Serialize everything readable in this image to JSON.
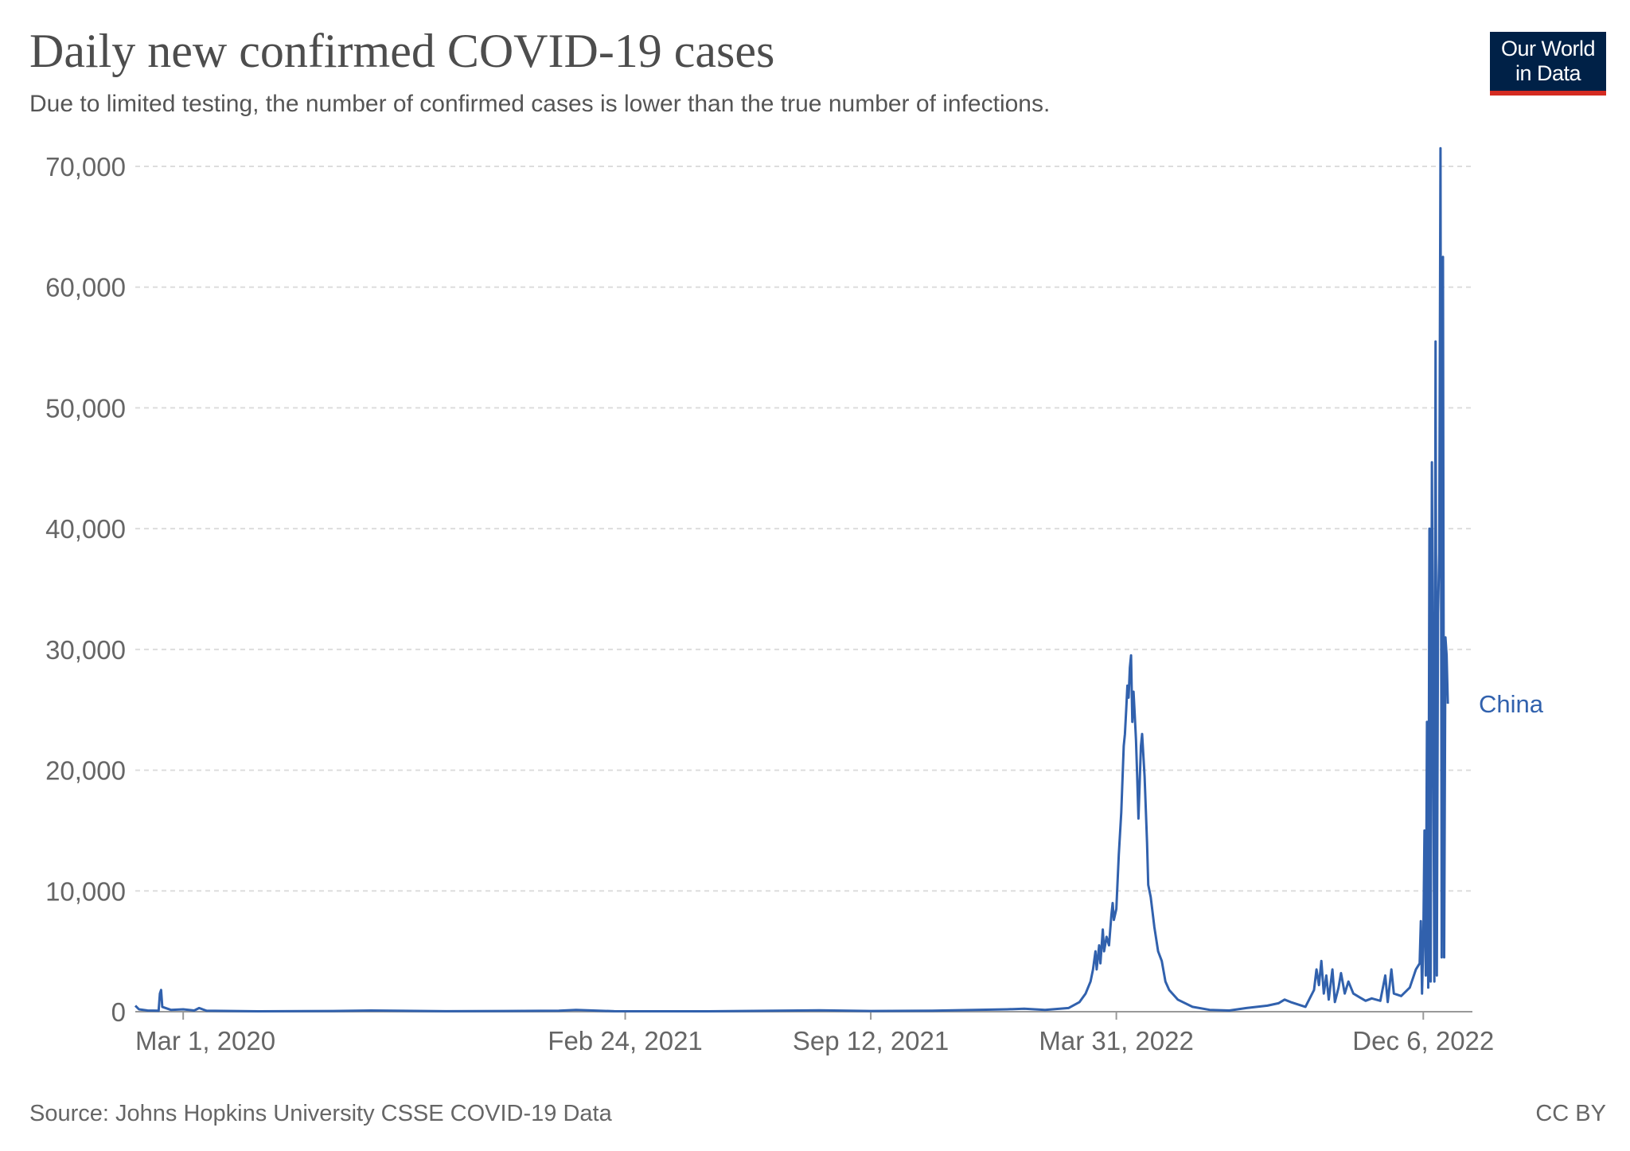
{
  "header": {
    "title": "Daily new confirmed COVID-19 cases",
    "subtitle": "Due to limited testing, the number of confirmed cases is lower than the true number of infections.",
    "logo_line1": "Our World",
    "logo_line2": "in Data"
  },
  "footer": {
    "source": "Source: Johns Hopkins University CSSE COVID-19 Data",
    "license": "CC BY"
  },
  "colors": {
    "series": "#3161ad",
    "text": "#4d4d4d",
    "grid": "#dddddd",
    "logo_bg": "#002147",
    "logo_accent": "#d42b21"
  },
  "chart_data": {
    "type": "line",
    "title": "Daily new confirmed COVID-19 cases",
    "subtitle": "Due to limited testing, the number of confirmed cases is lower than the true number of infections.",
    "xlabel": "",
    "ylabel": "",
    "ylim": [
      0,
      70000
    ],
    "yticks": [
      0,
      10000,
      20000,
      30000,
      40000,
      50000,
      60000,
      70000
    ],
    "ytick_labels": [
      "0",
      "10,000",
      "20,000",
      "30,000",
      "40,000",
      "50,000",
      "60,000",
      "70,000"
    ],
    "xlim": [
      "2020-01-22",
      "2023-01-15"
    ],
    "xticks": [
      "2020-03-01",
      "2021-02-24",
      "2021-09-12",
      "2022-03-31",
      "2022-12-06"
    ],
    "xtick_labels": [
      "Mar 1, 2020",
      "Feb 24, 2021",
      "Sep 12, 2021",
      "Mar 31, 2022",
      "Dec 6, 2022"
    ],
    "grid": true,
    "legend": "end-of-line label",
    "series": [
      {
        "name": "China",
        "points": [
          [
            "2020-01-22",
            500
          ],
          [
            "2020-01-25",
            200
          ],
          [
            "2020-02-01",
            100
          ],
          [
            "2020-02-10",
            80
          ],
          [
            "2020-02-11",
            1500
          ],
          [
            "2020-02-12",
            1800
          ],
          [
            "2020-02-13",
            400
          ],
          [
            "2020-02-20",
            150
          ],
          [
            "2020-03-01",
            200
          ],
          [
            "2020-03-10",
            100
          ],
          [
            "2020-03-14",
            300
          ],
          [
            "2020-03-20",
            80
          ],
          [
            "2020-05-01",
            30
          ],
          [
            "2020-07-01",
            60
          ],
          [
            "2020-08-01",
            100
          ],
          [
            "2020-10-01",
            40
          ],
          [
            "2021-01-01",
            80
          ],
          [
            "2021-01-15",
            150
          ],
          [
            "2021-02-15",
            40
          ],
          [
            "2021-05-01",
            30
          ],
          [
            "2021-08-01",
            120
          ],
          [
            "2021-09-12",
            60
          ],
          [
            "2021-11-01",
            80
          ],
          [
            "2022-01-01",
            200
          ],
          [
            "2022-01-15",
            250
          ],
          [
            "2022-02-01",
            150
          ],
          [
            "2022-02-20",
            300
          ],
          [
            "2022-03-01",
            800
          ],
          [
            "2022-03-06",
            1500
          ],
          [
            "2022-03-10",
            2500
          ],
          [
            "2022-03-12",
            3500
          ],
          [
            "2022-03-14",
            5000
          ],
          [
            "2022-03-15",
            3500
          ],
          [
            "2022-03-17",
            5500
          ],
          [
            "2022-03-18",
            4000
          ],
          [
            "2022-03-20",
            6800
          ],
          [
            "2022-03-21",
            5000
          ],
          [
            "2022-03-23",
            6200
          ],
          [
            "2022-03-25",
            5500
          ],
          [
            "2022-03-27",
            8000
          ],
          [
            "2022-03-28",
            9000
          ],
          [
            "2022-03-29",
            7600
          ],
          [
            "2022-03-31",
            8500
          ],
          [
            "2022-04-02",
            13000
          ],
          [
            "2022-04-04",
            16500
          ],
          [
            "2022-04-06",
            22000
          ],
          [
            "2022-04-07",
            23000
          ],
          [
            "2022-04-08",
            25000
          ],
          [
            "2022-04-09",
            27000
          ],
          [
            "2022-04-10",
            26000
          ],
          [
            "2022-04-11",
            28500
          ],
          [
            "2022-04-12",
            29500
          ],
          [
            "2022-04-13",
            24000
          ],
          [
            "2022-04-14",
            26500
          ],
          [
            "2022-04-15",
            24500
          ],
          [
            "2022-04-16",
            22500
          ],
          [
            "2022-04-17",
            19500
          ],
          [
            "2022-04-18",
            16000
          ],
          [
            "2022-04-20",
            22000
          ],
          [
            "2022-04-21",
            23000
          ],
          [
            "2022-04-23",
            19500
          ],
          [
            "2022-04-25",
            14000
          ],
          [
            "2022-04-26",
            10500
          ],
          [
            "2022-04-28",
            9500
          ],
          [
            "2022-05-01",
            7000
          ],
          [
            "2022-05-04",
            5000
          ],
          [
            "2022-05-07",
            4200
          ],
          [
            "2022-05-10",
            2500
          ],
          [
            "2022-05-13",
            1800
          ],
          [
            "2022-05-20",
            1000
          ],
          [
            "2022-06-01",
            400
          ],
          [
            "2022-06-15",
            150
          ],
          [
            "2022-07-01",
            100
          ],
          [
            "2022-07-15",
            300
          ],
          [
            "2022-08-01",
            500
          ],
          [
            "2022-08-10",
            700
          ],
          [
            "2022-08-15",
            1000
          ],
          [
            "2022-08-20",
            800
          ],
          [
            "2022-09-01",
            400
          ],
          [
            "2022-09-08",
            1800
          ],
          [
            "2022-09-10",
            3500
          ],
          [
            "2022-09-12",
            2200
          ],
          [
            "2022-09-14",
            4200
          ],
          [
            "2022-09-16",
            1500
          ],
          [
            "2022-09-18",
            3000
          ],
          [
            "2022-09-20",
            1000
          ],
          [
            "2022-09-23",
            3500
          ],
          [
            "2022-09-25",
            800
          ],
          [
            "2022-09-28",
            2000
          ],
          [
            "2022-09-30",
            3200
          ],
          [
            "2022-10-03",
            1500
          ],
          [
            "2022-10-06",
            2500
          ],
          [
            "2022-10-10",
            1500
          ],
          [
            "2022-10-15",
            1200
          ],
          [
            "2022-10-20",
            900
          ],
          [
            "2022-10-25",
            1100
          ],
          [
            "2022-11-01",
            900
          ],
          [
            "2022-11-05",
            3000
          ],
          [
            "2022-11-07",
            800
          ],
          [
            "2022-11-10",
            3500
          ],
          [
            "2022-11-12",
            1500
          ],
          [
            "2022-11-18",
            1300
          ],
          [
            "2022-11-25",
            2000
          ],
          [
            "2022-11-30",
            3500
          ],
          [
            "2022-12-03",
            4000
          ],
          [
            "2022-12-04",
            7500
          ],
          [
            "2022-12-05",
            1500
          ],
          [
            "2022-12-06",
            6000
          ],
          [
            "2022-12-07",
            15000
          ],
          [
            "2022-12-08",
            3000
          ],
          [
            "2022-12-09",
            24000
          ],
          [
            "2022-12-10",
            2000
          ],
          [
            "2022-12-11",
            40000
          ],
          [
            "2022-12-12",
            2500
          ],
          [
            "2022-12-13",
            45500
          ],
          [
            "2022-12-14",
            26000
          ],
          [
            "2022-12-15",
            2500
          ],
          [
            "2022-12-16",
            55500
          ],
          [
            "2022-12-17",
            3000
          ],
          [
            "2022-12-18",
            33000
          ],
          [
            "2022-12-19",
            38000
          ],
          [
            "2022-12-20",
            71500
          ],
          [
            "2022-12-21",
            4500
          ],
          [
            "2022-12-22",
            62500
          ],
          [
            "2022-12-23",
            4500
          ],
          [
            "2022-12-24",
            31000
          ],
          [
            "2022-12-25",
            29500
          ],
          [
            "2022-12-26",
            25500
          ]
        ]
      }
    ]
  }
}
